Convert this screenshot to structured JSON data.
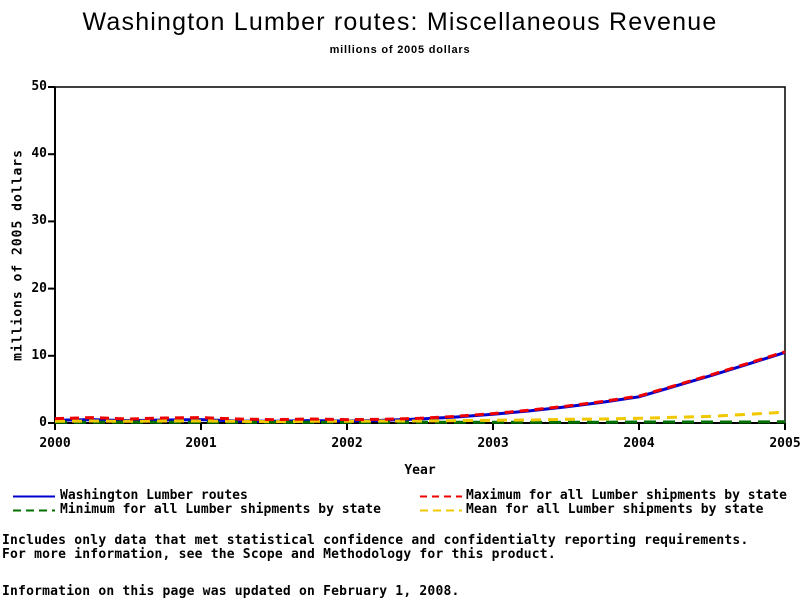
{
  "header": {
    "title": "Washington Lumber routes: Miscellaneous Revenue",
    "subtitle": "millions of 2005 dollars"
  },
  "chart_data": {
    "type": "line",
    "title": "Washington Lumber routes: Miscellaneous Revenue",
    "subtitle": "millions of 2005 dollars",
    "xlabel": "Year",
    "ylabel": "millions of 2005 dollars",
    "xlim": [
      2000,
      2005
    ],
    "ylim": [
      0,
      50
    ],
    "x_ticks": [
      2000,
      2001,
      2002,
      2003,
      2004,
      2005
    ],
    "y_ticks": [
      0,
      10,
      20,
      30,
      40,
      50
    ],
    "grid": false,
    "legend_position": "bottom",
    "x": [
      2000,
      2000.25,
      2000.5,
      2000.75,
      2001,
      2001.25,
      2001.5,
      2001.75,
      2002,
      2002.25,
      2002.5,
      2002.75,
      2003,
      2003.25,
      2003.5,
      2003.75,
      2004,
      2004.25,
      2004.5,
      2004.75,
      2005
    ],
    "series": [
      {
        "name": "Washington Lumber routes",
        "color": "#0000CC",
        "line_style": "solid",
        "dash": [],
        "legend_dash": [],
        "values": [
          0.4,
          0.5,
          0.35,
          0.45,
          0.5,
          0.3,
          0.25,
          0.35,
          0.3,
          0.4,
          0.6,
          0.9,
          1.3,
          1.8,
          2.4,
          3.1,
          3.9,
          5.5,
          7.1,
          8.8,
          10.5
        ]
      },
      {
        "name": "Maximum for all Lumber shipments by state",
        "color": "#EE0000",
        "line_style": "dashed",
        "dash": [
          9,
          6
        ],
        "legend_dash": [
          7,
          5
        ],
        "values": [
          0.65,
          0.8,
          0.6,
          0.75,
          0.8,
          0.6,
          0.5,
          0.6,
          0.5,
          0.55,
          0.7,
          1.0,
          1.4,
          1.9,
          2.5,
          3.2,
          4.0,
          5.6,
          7.2,
          8.9,
          10.6
        ]
      },
      {
        "name": "Minimum for all Lumber shipments by state",
        "color": "#007000",
        "line_style": "dashed",
        "dash": [
          12,
          7
        ],
        "legend_dash": [
          8,
          5
        ],
        "values": [
          0.1,
          0.1,
          0.1,
          0.1,
          0.1,
          0.1,
          0.1,
          0.1,
          0.1,
          0.1,
          0.1,
          0.1,
          0.1,
          0.1,
          0.1,
          0.1,
          0.15,
          0.15,
          0.15,
          0.15,
          0.2
        ]
      },
      {
        "name": "Mean for all Lumber shipments by state",
        "color": "#F0C800",
        "line_style": "dashed",
        "dash": [
          10,
          7
        ],
        "legend_dash": [
          8,
          5
        ],
        "values": [
          0.25,
          0.3,
          0.25,
          0.3,
          0.3,
          0.25,
          0.2,
          0.25,
          0.25,
          0.3,
          0.3,
          0.35,
          0.4,
          0.45,
          0.55,
          0.6,
          0.7,
          0.85,
          1.0,
          1.3,
          1.6
        ]
      }
    ]
  },
  "footer": {
    "note_line1": "Includes only data that met statistical confidence and confidentialty reporting requirements.",
    "note_line2": "For more information, see the Scope and Methodology for this product.",
    "updated": "Information on this page was updated on February 1, 2008."
  }
}
